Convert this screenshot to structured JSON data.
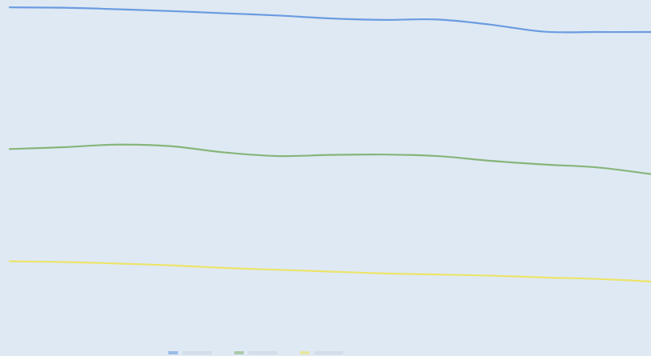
{
  "page": {
    "background": "#dfe9f4"
  },
  "chart_data": {
    "type": "line",
    "title": "",
    "xlabel": "",
    "ylabel": "",
    "grid": false,
    "legend": {
      "position": "bottom-center",
      "entries": [
        {
          "color": "#5f95dd"
        },
        {
          "color": "#7fb06e"
        },
        {
          "color": "#ece35d"
        }
      ]
    },
    "x": [
      0,
      1,
      2,
      3,
      4,
      5,
      6,
      7,
      8,
      9,
      10,
      11,
      12
    ],
    "ylim": [
      0,
      100
    ],
    "series": [
      {
        "color": "#5f95dd",
        "values": [
          98,
          97.9,
          97.5,
          97,
          96.4,
          95.8,
          95,
          94.6,
          94.7,
          93.3,
          91.4,
          91.3,
          91.3
        ]
      },
      {
        "color": "#7fb06e",
        "values": [
          59.5,
          60,
          60.7,
          60.3,
          58.6,
          57.6,
          57.9,
          58,
          57.6,
          56.3,
          55.3,
          54.5,
          52.7
        ]
      },
      {
        "color": "#ece35d",
        "values": [
          29,
          28.8,
          28.4,
          27.9,
          27.2,
          26.7,
          26.2,
          25.7,
          25.4,
          25.1,
          24.6,
          24.2,
          23.5
        ]
      }
    ]
  }
}
